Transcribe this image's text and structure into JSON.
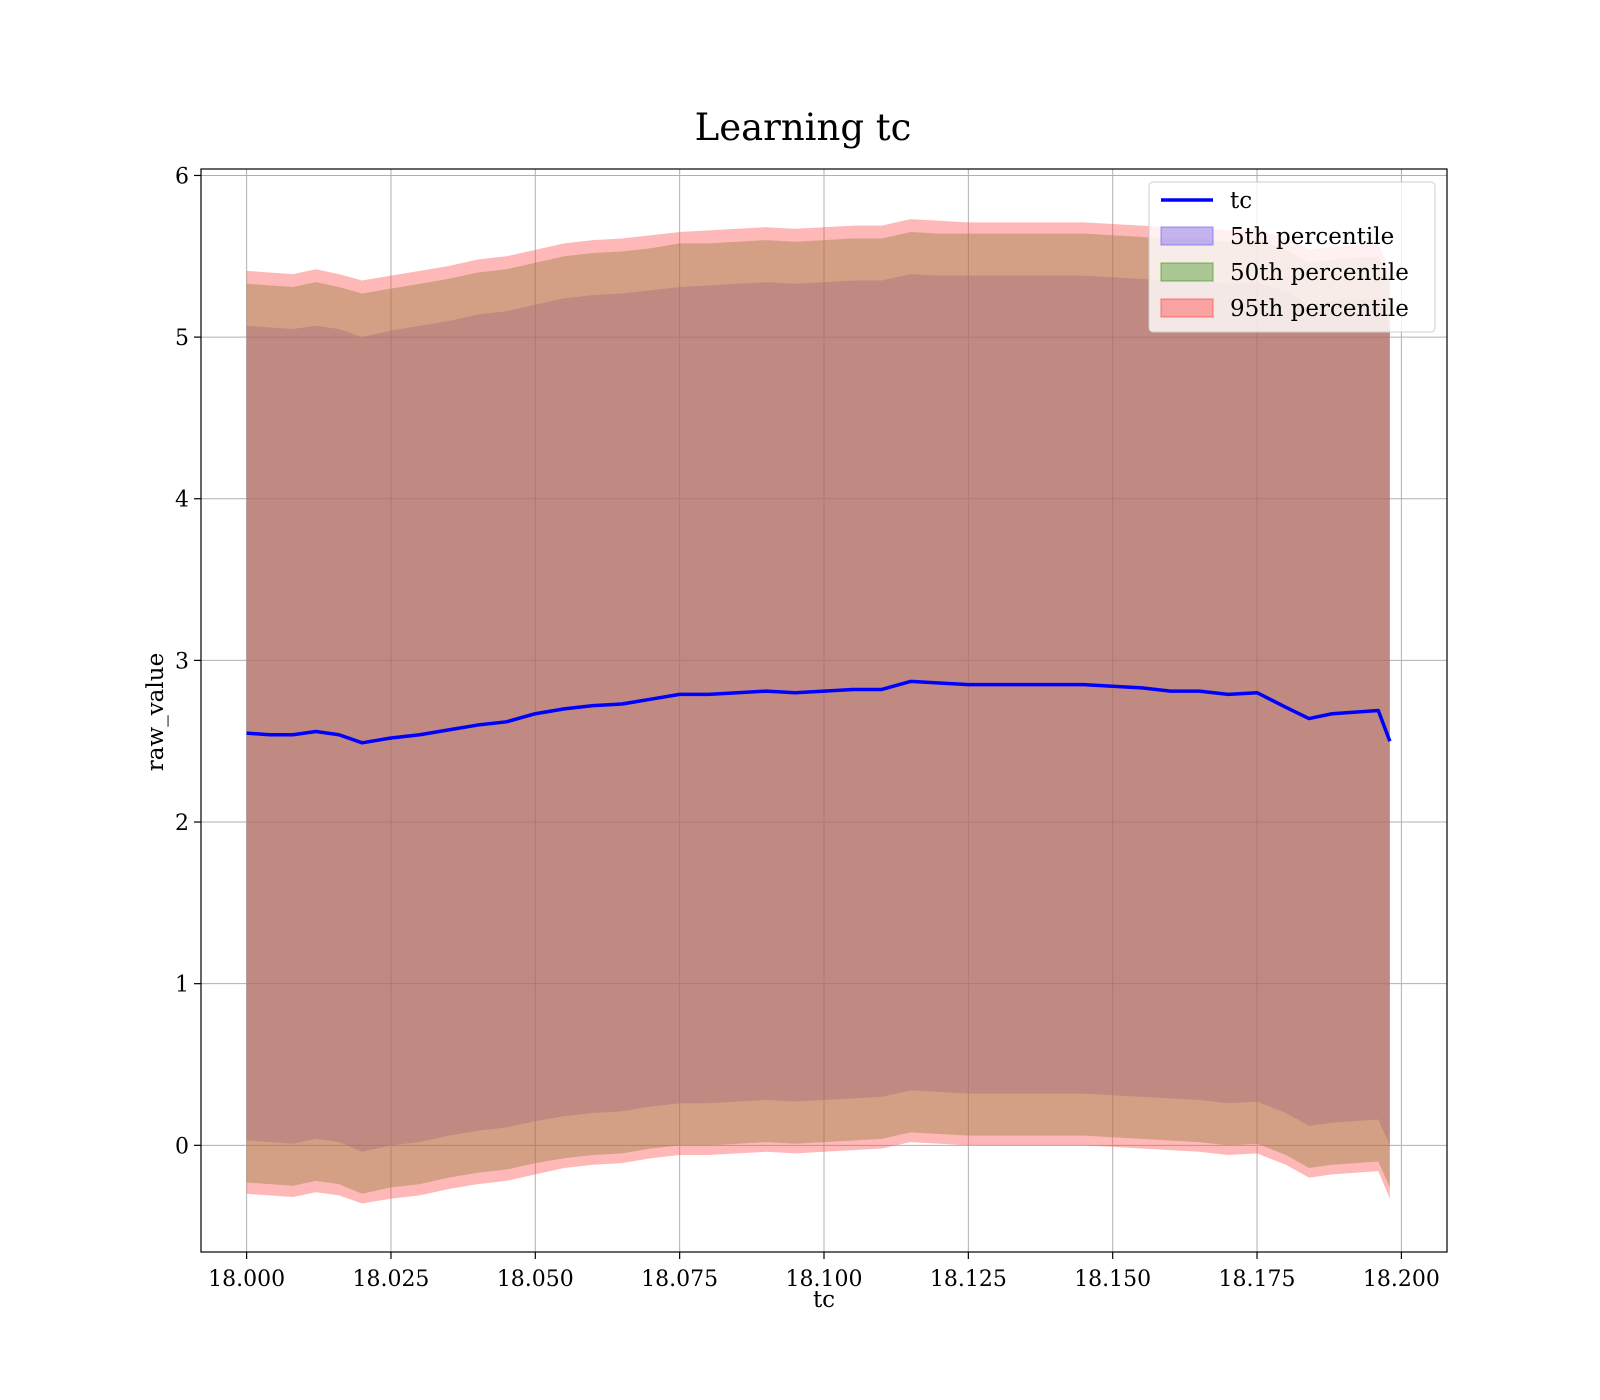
{
  "chart_data": {
    "type": "area",
    "title": "Learning tc",
    "xlabel": "tc",
    "ylabel": "raw_value",
    "xlim": [
      17.9921,
      18.2079
    ],
    "ylim": [
      -0.66,
      6.04
    ],
    "grid": true,
    "legend_position": "top-right",
    "xticks": [
      18.0,
      18.025,
      18.05,
      18.075,
      18.1,
      18.125,
      18.15,
      18.175,
      18.2
    ],
    "xtick_labels": [
      "18.000",
      "18.025",
      "18.050",
      "18.075",
      "18.100",
      "18.125",
      "18.150",
      "18.175",
      "18.200"
    ],
    "yticks": [
      0,
      1,
      2,
      3,
      4,
      5,
      6
    ],
    "ytick_labels": [
      "0",
      "1",
      "2",
      "3",
      "4",
      "5",
      "6"
    ],
    "x": [
      18.0,
      18.004,
      18.008,
      18.012,
      18.016,
      18.02,
      18.025,
      18.03,
      18.035,
      18.04,
      18.045,
      18.05,
      18.055,
      18.06,
      18.065,
      18.07,
      18.075,
      18.08,
      18.085,
      18.09,
      18.095,
      18.1,
      18.105,
      18.11,
      18.115,
      18.12,
      18.125,
      18.13,
      18.135,
      18.14,
      18.145,
      18.15,
      18.155,
      18.16,
      18.165,
      18.17,
      18.175,
      18.18,
      18.184,
      18.188,
      18.192,
      18.196,
      18.198
    ],
    "series": [
      {
        "name": "tc",
        "kind": "line",
        "color": "#0000ff",
        "values": [
          2.55,
          2.54,
          2.54,
          2.56,
          2.54,
          2.49,
          2.52,
          2.54,
          2.57,
          2.6,
          2.62,
          2.67,
          2.7,
          2.72,
          2.73,
          2.76,
          2.79,
          2.79,
          2.8,
          2.81,
          2.8,
          2.81,
          2.82,
          2.82,
          2.87,
          2.86,
          2.85,
          2.85,
          2.85,
          2.85,
          2.85,
          2.84,
          2.83,
          2.81,
          2.81,
          2.79,
          2.8,
          2.71,
          2.64,
          2.67,
          2.68,
          2.69,
          2.5
        ]
      },
      {
        "name": "5th percentile",
        "kind": "band",
        "color": "#7b68ee",
        "upper": [
          5.07,
          5.06,
          5.05,
          5.07,
          5.05,
          5.0,
          5.04,
          5.07,
          5.1,
          5.14,
          5.16,
          5.2,
          5.24,
          5.26,
          5.27,
          5.29,
          5.31,
          5.32,
          5.33,
          5.34,
          5.33,
          5.34,
          5.35,
          5.35,
          5.39,
          5.38,
          5.38,
          5.38,
          5.38,
          5.38,
          5.38,
          5.37,
          5.36,
          5.35,
          5.35,
          5.33,
          5.34,
          5.28,
          5.2,
          5.22,
          5.23,
          5.24,
          5.06
        ],
        "lower": [
          0.03,
          0.02,
          0.01,
          0.04,
          0.02,
          -0.04,
          0.0,
          0.02,
          0.06,
          0.09,
          0.11,
          0.15,
          0.18,
          0.2,
          0.21,
          0.24,
          0.26,
          0.26,
          0.27,
          0.28,
          0.27,
          0.28,
          0.29,
          0.3,
          0.34,
          0.33,
          0.32,
          0.32,
          0.32,
          0.32,
          0.32,
          0.31,
          0.3,
          0.29,
          0.28,
          0.26,
          0.27,
          0.2,
          0.12,
          0.14,
          0.15,
          0.16,
          0.0
        ]
      },
      {
        "name": "50th percentile",
        "kind": "band",
        "color": "#4c9a2a",
        "upper": [
          5.33,
          5.32,
          5.31,
          5.34,
          5.31,
          5.27,
          5.3,
          5.33,
          5.36,
          5.4,
          5.42,
          5.46,
          5.5,
          5.52,
          5.53,
          5.55,
          5.58,
          5.58,
          5.59,
          5.6,
          5.59,
          5.6,
          5.61,
          5.61,
          5.65,
          5.64,
          5.64,
          5.64,
          5.64,
          5.64,
          5.64,
          5.63,
          5.62,
          5.61,
          5.61,
          5.59,
          5.6,
          5.54,
          5.46,
          5.48,
          5.49,
          5.5,
          5.33
        ],
        "lower": [
          -0.23,
          -0.24,
          -0.25,
          -0.22,
          -0.24,
          -0.3,
          -0.26,
          -0.24,
          -0.2,
          -0.17,
          -0.15,
          -0.11,
          -0.08,
          -0.06,
          -0.05,
          -0.02,
          0.0,
          0.0,
          0.01,
          0.02,
          0.01,
          0.02,
          0.03,
          0.04,
          0.08,
          0.07,
          0.06,
          0.06,
          0.06,
          0.06,
          0.06,
          0.05,
          0.04,
          0.03,
          0.02,
          0.0,
          0.01,
          -0.06,
          -0.14,
          -0.12,
          -0.11,
          -0.1,
          -0.26
        ]
      },
      {
        "name": "95th percentile",
        "kind": "band",
        "color": "#ff4d4d",
        "upper": [
          5.41,
          5.4,
          5.39,
          5.42,
          5.39,
          5.35,
          5.38,
          5.41,
          5.44,
          5.48,
          5.5,
          5.54,
          5.58,
          5.6,
          5.61,
          5.63,
          5.65,
          5.66,
          5.67,
          5.68,
          5.67,
          5.68,
          5.69,
          5.69,
          5.73,
          5.72,
          5.71,
          5.71,
          5.71,
          5.71,
          5.71,
          5.7,
          5.69,
          5.68,
          5.68,
          5.66,
          5.67,
          5.61,
          5.54,
          5.56,
          5.57,
          5.58,
          5.41
        ],
        "lower": [
          -0.3,
          -0.31,
          -0.32,
          -0.29,
          -0.31,
          -0.36,
          -0.33,
          -0.31,
          -0.27,
          -0.24,
          -0.22,
          -0.18,
          -0.14,
          -0.12,
          -0.11,
          -0.08,
          -0.06,
          -0.06,
          -0.05,
          -0.04,
          -0.05,
          -0.04,
          -0.03,
          -0.02,
          0.02,
          0.01,
          0.0,
          0.0,
          0.0,
          0.0,
          0.0,
          -0.01,
          -0.02,
          -0.03,
          -0.04,
          -0.06,
          -0.05,
          -0.12,
          -0.2,
          -0.18,
          -0.17,
          -0.16,
          -0.33
        ]
      }
    ],
    "legend": [
      {
        "label": "tc",
        "type": "line",
        "color": "#0000ff"
      },
      {
        "label": "5th percentile",
        "type": "patch",
        "color": "#7b68ee"
      },
      {
        "label": "50th percentile",
        "type": "patch",
        "color": "#4c9a2a"
      },
      {
        "label": "95th percentile",
        "type": "patch",
        "color": "#ff4d4d"
      }
    ]
  }
}
